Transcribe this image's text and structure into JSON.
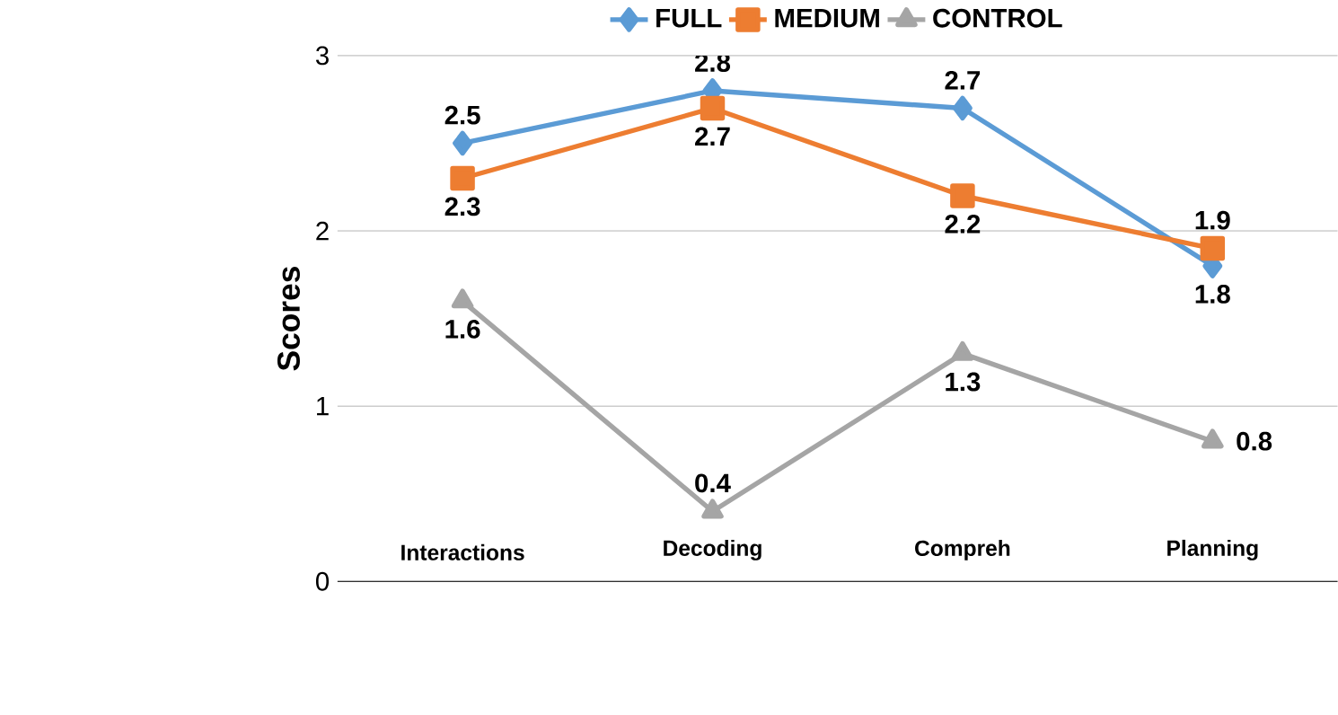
{
  "chart_data": {
    "type": "line",
    "ylabel": "Scores",
    "categories": [
      "Interactions",
      "Decoding",
      "Compreh",
      "Planning"
    ],
    "series": [
      {
        "name": "FULL",
        "color": "#5b9bd5",
        "marker": "diamond",
        "values": [
          2.5,
          2.8,
          2.7,
          1.8
        ]
      },
      {
        "name": "MEDIUM",
        "color": "#ed7d31",
        "marker": "square",
        "values": [
          2.3,
          2.7,
          2.2,
          1.9
        ]
      },
      {
        "name": "CONTROL",
        "color": "#a5a5a5",
        "marker": "triangle",
        "values": [
          1.6,
          0.4,
          1.3,
          0.8
        ]
      }
    ],
    "ylim": [
      0,
      3
    ],
    "yticks": [
      0,
      1,
      2,
      3
    ],
    "grid": "y",
    "legend": "top",
    "data_labels": true
  }
}
